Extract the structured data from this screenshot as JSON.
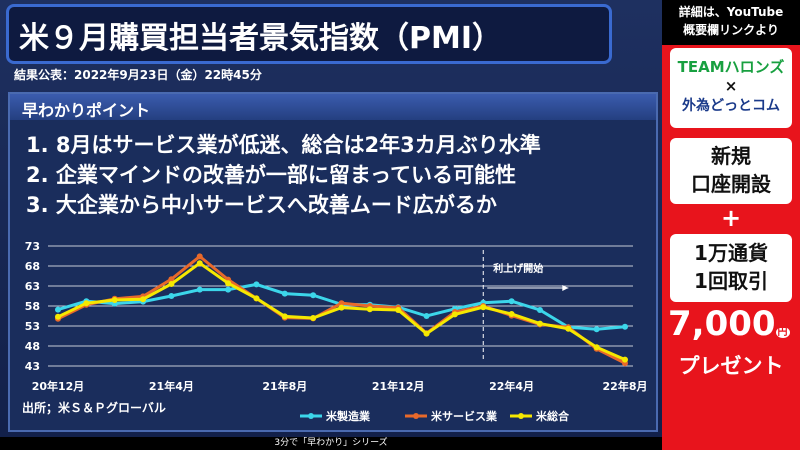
{
  "header": {
    "title": "米９月購買担当者景気指数（PMI）",
    "subtitle": "結果公表：2022年9月23日（金）22時45分"
  },
  "section": {
    "title": "早わかりポイント",
    "points": [
      "1. 8月はサービス業が低迷、総合は2年3カ月ぶり水準",
      "2. 企業マインドの改善が一部に留まっている可能性",
      "3. 大企業から中小サービスへ改善ムード広がるか"
    ]
  },
  "chart_data": {
    "type": "line",
    "categories": [
      "20年12月",
      null,
      null,
      null,
      "21年4月",
      null,
      null,
      null,
      "21年8月",
      null,
      null,
      null,
      "21年12月",
      null,
      null,
      null,
      "22年4月",
      null,
      null,
      null,
      "22年8月"
    ],
    "series": [
      {
        "name": "米製造業",
        "color": "#3cd6ea",
        "values": [
          57.1,
          59.2,
          58.6,
          59.1,
          60.5,
          62.1,
          62.1,
          63.4,
          61.1,
          60.7,
          58.4,
          58.3,
          57.7,
          55.5,
          57.3,
          58.8,
          59.2,
          57.0,
          52.7,
          52.2,
          52.8
        ]
      },
      {
        "name": "米サービス業",
        "color": "#e8692a",
        "values": [
          54.8,
          58.3,
          59.8,
          60.4,
          64.7,
          70.4,
          64.6,
          59.9,
          55.1,
          54.9,
          58.7,
          58.0,
          57.6,
          51.2,
          56.5,
          58.0,
          55.6,
          53.4,
          52.7,
          47.3,
          43.7
        ]
      },
      {
        "name": "米総合",
        "color": "#f5e800",
        "values": [
          55.3,
          58.7,
          59.5,
          59.7,
          63.5,
          68.7,
          63.7,
          59.9,
          55.4,
          55.0,
          57.6,
          57.2,
          57.0,
          51.1,
          55.9,
          57.7,
          56.0,
          53.6,
          52.3,
          47.7,
          44.6
        ]
      }
    ],
    "ylim": [
      43,
      73
    ],
    "yticks": [
      43,
      48,
      53,
      58,
      63,
      68,
      73
    ],
    "grid": true,
    "annotation": "利上げ開始",
    "source": "出所；米Ｓ＆Ｐグローバル"
  },
  "footer": "3分で「早わかり」シリーズ",
  "sidebar": {
    "top": [
      "詳細は、YouTube",
      "概要欄リンクより"
    ],
    "brand1": "TEAMハロンズ",
    "cross": "×",
    "brand2": "外為どっとコム",
    "offer1": [
      "新規",
      "口座開設"
    ],
    "plus": "+",
    "offer2": [
      "1万通貨",
      "1回取引"
    ],
    "amount": "7,000",
    "unit": "円",
    "present": "プレゼント"
  }
}
